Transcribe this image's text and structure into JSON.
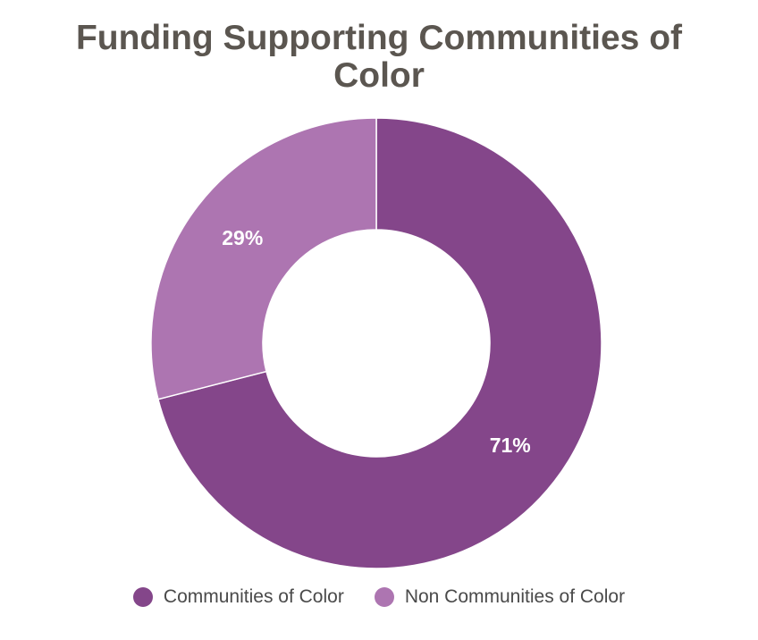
{
  "chart_data": {
    "type": "donut",
    "title": "Funding Supporting Communities of Color",
    "categories": [
      "Communities of Color",
      "Non Communities of Color"
    ],
    "values": [
      71,
      29
    ],
    "value_labels": [
      "71%",
      "29%"
    ],
    "colors": [
      "#84468a",
      "#ad75b1"
    ],
    "legend": "bottom"
  }
}
